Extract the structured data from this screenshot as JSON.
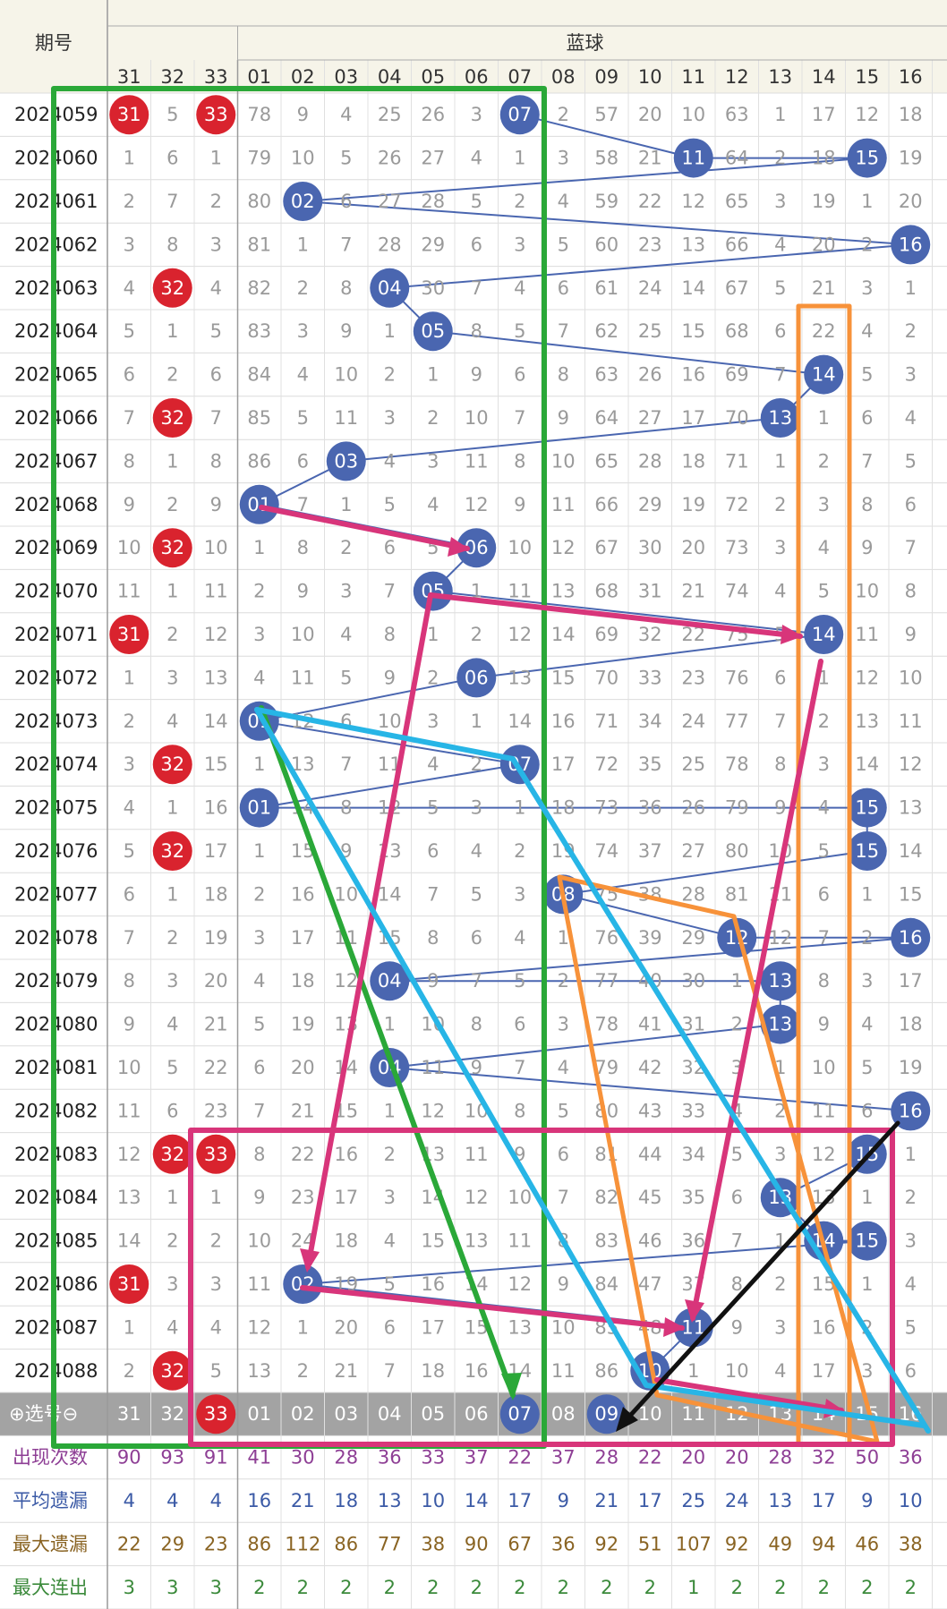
{
  "header": {
    "issue_label": "期号",
    "blue_label": "蓝球",
    "columns": [
      "31",
      "32",
      "33",
      "01",
      "02",
      "03",
      "04",
      "05",
      "06",
      "07",
      "08",
      "09",
      "10",
      "11",
      "12",
      "13",
      "14",
      "15",
      "16"
    ]
  },
  "rows": [
    {
      "issue": "2024059",
      "cells": [
        "31",
        "5",
        "33",
        "78",
        "9",
        "4",
        "25",
        "26",
        "3",
        "07",
        "2",
        "57",
        "20",
        "10",
        "63",
        "1",
        "17",
        "12",
        "18"
      ]
    },
    {
      "issue": "2024060",
      "cells": [
        "1",
        "6",
        "1",
        "79",
        "10",
        "5",
        "26",
        "27",
        "4",
        "1",
        "3",
        "58",
        "21",
        "11",
        "64",
        "2",
        "18",
        "15",
        "19"
      ]
    },
    {
      "issue": "2024061",
      "cells": [
        "2",
        "7",
        "2",
        "80",
        "02",
        "6",
        "27",
        "28",
        "5",
        "2",
        "4",
        "59",
        "22",
        "12",
        "65",
        "3",
        "19",
        "1",
        "20"
      ]
    },
    {
      "issue": "2024062",
      "cells": [
        "3",
        "8",
        "3",
        "81",
        "1",
        "7",
        "28",
        "29",
        "6",
        "3",
        "5",
        "60",
        "23",
        "13",
        "66",
        "4",
        "20",
        "2",
        "16"
      ]
    },
    {
      "issue": "2024063",
      "cells": [
        "4",
        "32",
        "4",
        "82",
        "2",
        "8",
        "04",
        "30",
        "7",
        "4",
        "6",
        "61",
        "24",
        "14",
        "67",
        "5",
        "21",
        "3",
        "1"
      ]
    },
    {
      "issue": "2024064",
      "cells": [
        "5",
        "1",
        "5",
        "83",
        "3",
        "9",
        "1",
        "05",
        "8",
        "5",
        "7",
        "62",
        "25",
        "15",
        "68",
        "6",
        "22",
        "4",
        "2"
      ]
    },
    {
      "issue": "2024065",
      "cells": [
        "6",
        "2",
        "6",
        "84",
        "4",
        "10",
        "2",
        "1",
        "9",
        "6",
        "8",
        "63",
        "26",
        "16",
        "69",
        "7",
        "14",
        "5",
        "3"
      ]
    },
    {
      "issue": "2024066",
      "cells": [
        "7",
        "32",
        "7",
        "85",
        "5",
        "11",
        "3",
        "2",
        "10",
        "7",
        "9",
        "64",
        "27",
        "17",
        "70",
        "13",
        "1",
        "6",
        "4"
      ]
    },
    {
      "issue": "2024067",
      "cells": [
        "8",
        "1",
        "8",
        "86",
        "6",
        "03",
        "4",
        "3",
        "11",
        "8",
        "10",
        "65",
        "28",
        "18",
        "71",
        "1",
        "2",
        "7",
        "5"
      ]
    },
    {
      "issue": "2024068",
      "cells": [
        "9",
        "2",
        "9",
        "01",
        "7",
        "1",
        "5",
        "4",
        "12",
        "9",
        "11",
        "66",
        "29",
        "19",
        "72",
        "2",
        "3",
        "8",
        "6"
      ]
    },
    {
      "issue": "2024069",
      "cells": [
        "10",
        "32",
        "10",
        "1",
        "8",
        "2",
        "6",
        "5",
        "06",
        "10",
        "12",
        "67",
        "30",
        "20",
        "73",
        "3",
        "4",
        "9",
        "7"
      ]
    },
    {
      "issue": "2024070",
      "cells": [
        "11",
        "1",
        "11",
        "2",
        "9",
        "3",
        "7",
        "05",
        "1",
        "11",
        "13",
        "68",
        "31",
        "21",
        "74",
        "4",
        "5",
        "10",
        "8"
      ]
    },
    {
      "issue": "2024071",
      "cells": [
        "31",
        "2",
        "12",
        "3",
        "10",
        "4",
        "8",
        "1",
        "2",
        "12",
        "14",
        "69",
        "32",
        "22",
        "75",
        "5",
        "14",
        "11",
        "9"
      ]
    },
    {
      "issue": "2024072",
      "cells": [
        "1",
        "3",
        "13",
        "4",
        "11",
        "5",
        "9",
        "2",
        "06",
        "13",
        "15",
        "70",
        "33",
        "23",
        "76",
        "6",
        "1",
        "12",
        "10"
      ]
    },
    {
      "issue": "2024073",
      "cells": [
        "2",
        "4",
        "14",
        "01",
        "12",
        "6",
        "10",
        "3",
        "1",
        "14",
        "16",
        "71",
        "34",
        "24",
        "77",
        "7",
        "2",
        "13",
        "11"
      ]
    },
    {
      "issue": "2024074",
      "cells": [
        "3",
        "32",
        "15",
        "1",
        "13",
        "7",
        "11",
        "4",
        "2",
        "07",
        "17",
        "72",
        "35",
        "25",
        "78",
        "8",
        "3",
        "14",
        "12"
      ]
    },
    {
      "issue": "2024075",
      "cells": [
        "4",
        "1",
        "16",
        "01",
        "14",
        "8",
        "12",
        "5",
        "3",
        "1",
        "18",
        "73",
        "36",
        "26",
        "79",
        "9",
        "4",
        "15",
        "13"
      ]
    },
    {
      "issue": "2024076",
      "cells": [
        "5",
        "32",
        "17",
        "1",
        "15",
        "9",
        "13",
        "6",
        "4",
        "2",
        "19",
        "74",
        "37",
        "27",
        "80",
        "10",
        "5",
        "15",
        "14"
      ]
    },
    {
      "issue": "2024077",
      "cells": [
        "6",
        "1",
        "18",
        "2",
        "16",
        "10",
        "14",
        "7",
        "5",
        "3",
        "08",
        "75",
        "38",
        "28",
        "81",
        "11",
        "6",
        "1",
        "15"
      ]
    },
    {
      "issue": "2024078",
      "cells": [
        "7",
        "2",
        "19",
        "3",
        "17",
        "11",
        "15",
        "8",
        "6",
        "4",
        "1",
        "76",
        "39",
        "29",
        "12",
        "12",
        "7",
        "2",
        "16"
      ]
    },
    {
      "issue": "2024079",
      "cells": [
        "8",
        "3",
        "20",
        "4",
        "18",
        "12",
        "04",
        "9",
        "7",
        "5",
        "2",
        "77",
        "40",
        "30",
        "1",
        "13",
        "8",
        "3",
        "17"
      ]
    },
    {
      "issue": "2024080",
      "cells": [
        "9",
        "4",
        "21",
        "5",
        "19",
        "13",
        "1",
        "10",
        "8",
        "6",
        "3",
        "78",
        "41",
        "31",
        "2",
        "13",
        "9",
        "4",
        "18"
      ]
    },
    {
      "issue": "2024081",
      "cells": [
        "10",
        "5",
        "22",
        "6",
        "20",
        "14",
        "04",
        "11",
        "9",
        "7",
        "4",
        "79",
        "42",
        "32",
        "3",
        "1",
        "10",
        "5",
        "19"
      ]
    },
    {
      "issue": "2024082",
      "cells": [
        "11",
        "6",
        "23",
        "7",
        "21",
        "15",
        "1",
        "12",
        "10",
        "8",
        "5",
        "80",
        "43",
        "33",
        "4",
        "2",
        "11",
        "6",
        "16"
      ]
    },
    {
      "issue": "2024083",
      "cells": [
        "12",
        "32",
        "33",
        "8",
        "22",
        "16",
        "2",
        "13",
        "11",
        "9",
        "6",
        "81",
        "44",
        "34",
        "5",
        "3",
        "12",
        "15",
        "1"
      ]
    },
    {
      "issue": "2024084",
      "cells": [
        "13",
        "1",
        "1",
        "9",
        "23",
        "17",
        "3",
        "14",
        "12",
        "10",
        "7",
        "82",
        "45",
        "35",
        "6",
        "13",
        "13",
        "1",
        "2"
      ]
    },
    {
      "issue": "2024085",
      "cells": [
        "14",
        "2",
        "2",
        "10",
        "24",
        "18",
        "4",
        "15",
        "13",
        "11",
        "8",
        "83",
        "46",
        "36",
        "7",
        "1",
        "14",
        "15",
        "3"
      ]
    },
    {
      "issue": "2024086",
      "cells": [
        "31",
        "3",
        "3",
        "11",
        "02",
        "19",
        "5",
        "16",
        "14",
        "12",
        "9",
        "84",
        "47",
        "37",
        "8",
        "2",
        "15",
        "1",
        "4"
      ]
    },
    {
      "issue": "2024087",
      "cells": [
        "1",
        "4",
        "4",
        "12",
        "1",
        "20",
        "6",
        "17",
        "15",
        "13",
        "10",
        "85",
        "48",
        "11",
        "9",
        "3",
        "16",
        "2",
        "5"
      ]
    },
    {
      "issue": "2024088",
      "cells": [
        "2",
        "32",
        "5",
        "13",
        "2",
        "21",
        "7",
        "18",
        "16",
        "14",
        "11",
        "86",
        "10",
        "1",
        "10",
        "4",
        "17",
        "3",
        "6"
      ]
    }
  ],
  "selector": {
    "label": "⊕选号⊖",
    "cells": [
      "31",
      "32",
      "33",
      "01",
      "02",
      "03",
      "04",
      "05",
      "06",
      "07",
      "08",
      "09",
      "10",
      "11",
      "12",
      "13",
      "14",
      "15",
      "16"
    ],
    "balls": [
      2,
      9,
      11
    ]
  },
  "stats": [
    {
      "label": "出现次数",
      "values": [
        90,
        93,
        91,
        41,
        30,
        28,
        36,
        33,
        37,
        22,
        37,
        28,
        22,
        20,
        20,
        28,
        32,
        50,
        36
      ]
    },
    {
      "label": "平均遗漏",
      "values": [
        4,
        4,
        4,
        16,
        21,
        18,
        13,
        10,
        14,
        17,
        9,
        21,
        17,
        25,
        24,
        13,
        17,
        9,
        10
      ]
    },
    {
      "label": "最大遗漏",
      "values": [
        22,
        29,
        23,
        86,
        112,
        86,
        77,
        38,
        90,
        67,
        36,
        92,
        51,
        107,
        92,
        49,
        94,
        46,
        38
      ]
    },
    {
      "label": "最大连出",
      "values": [
        3,
        3,
        3,
        2,
        2,
        2,
        2,
        2,
        2,
        2,
        2,
        2,
        2,
        1,
        2,
        2,
        2,
        2,
        2
      ]
    }
  ]
}
